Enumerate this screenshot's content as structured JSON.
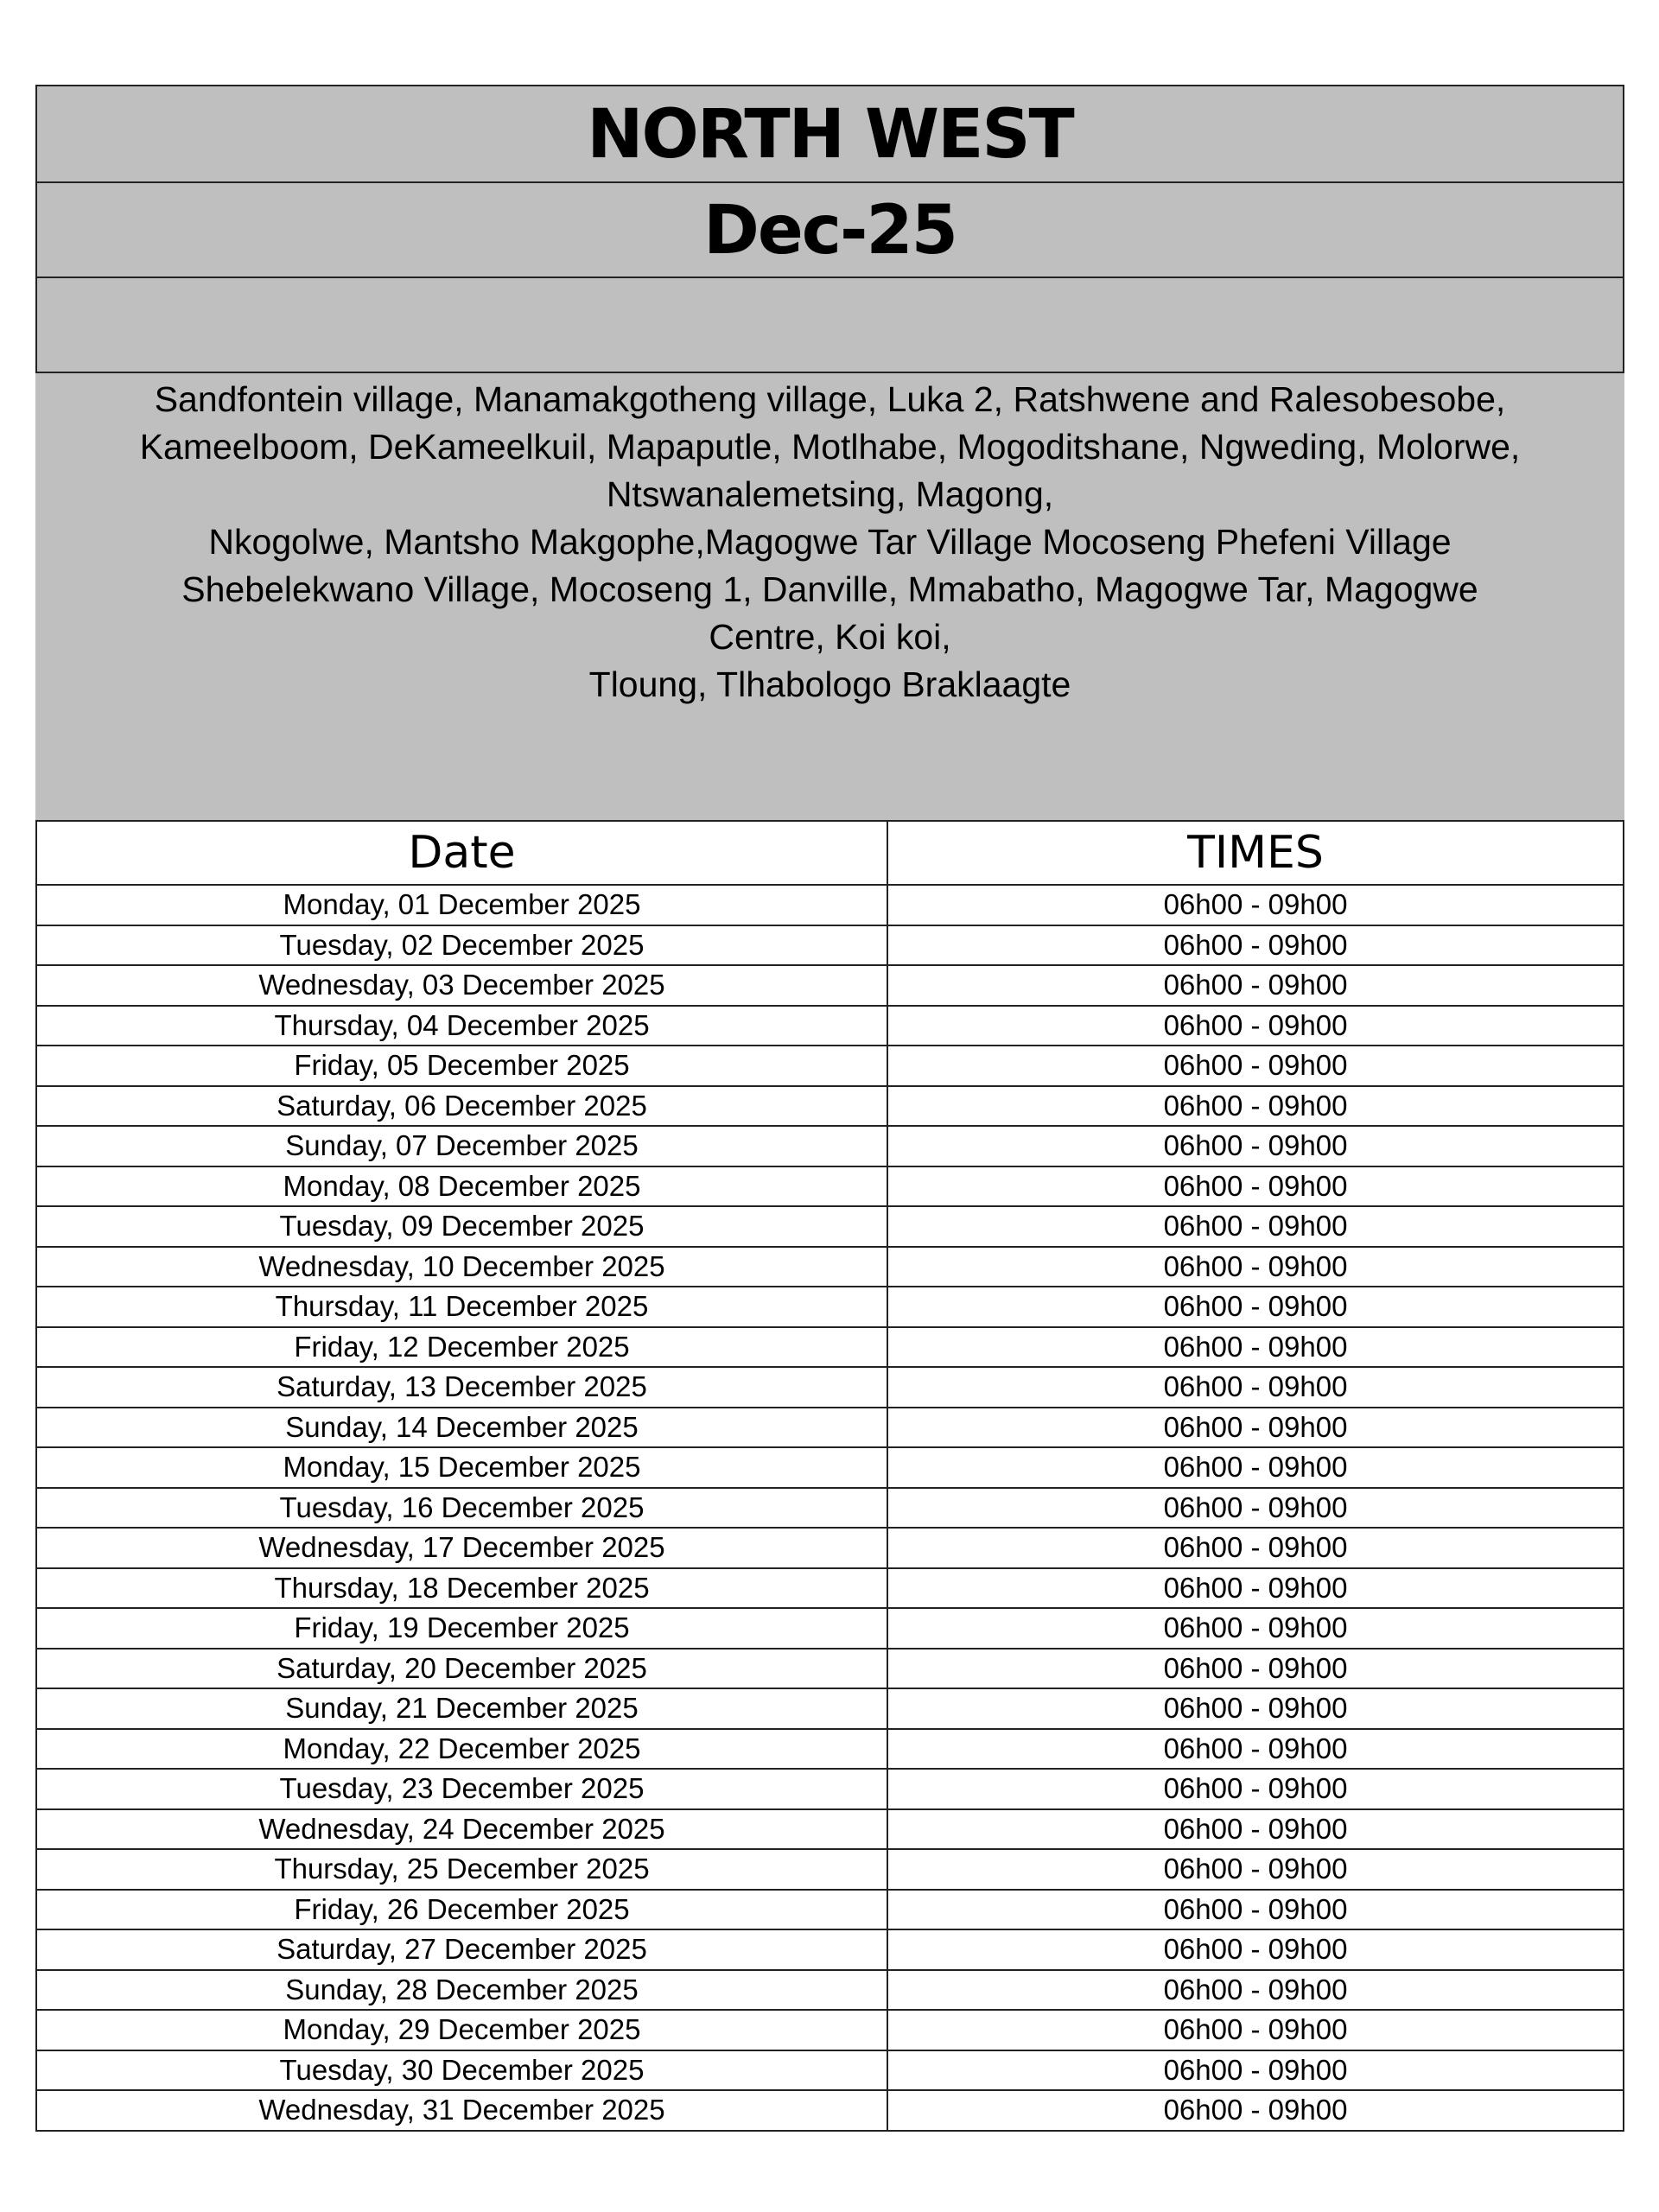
{
  "header": {
    "region": "NORTH WEST",
    "month": "Dec-25"
  },
  "areas": [
    "Sandfontein village, Manamakgotheng village, Luka 2, Ratshwene and Ralesobesobe,",
    "Kameelboom, DeKameelkuil, Mapaputle, Motlhabe, Mogoditshane, Ngweding, Molorwe,",
    "Ntswanalemetsing, Magong,",
    "Nkogolwe, Mantsho Makgophe,Magogwe Tar Village Mocoseng Phefeni Village",
    "Shebelekwano Village, Mocoseng 1, Danville, Mmabatho, Magogwe Tar, Magogwe",
    "Centre, Koi koi,",
    "Tloung, Tlhabologo Braklaagte"
  ],
  "table": {
    "columns": [
      "Date",
      "TIMES"
    ],
    "rows": [
      [
        "Monday, 01 December 2025",
        "06h00 - 09h00"
      ],
      [
        "Tuesday, 02 December 2025",
        "06h00 - 09h00"
      ],
      [
        "Wednesday, 03 December 2025",
        "06h00 - 09h00"
      ],
      [
        "Thursday, 04 December 2025",
        "06h00 - 09h00"
      ],
      [
        "Friday, 05 December 2025",
        "06h00 - 09h00"
      ],
      [
        "Saturday, 06 December 2025",
        "06h00 - 09h00"
      ],
      [
        "Sunday, 07 December 2025",
        "06h00 - 09h00"
      ],
      [
        "Monday, 08 December 2025",
        "06h00 - 09h00"
      ],
      [
        "Tuesday, 09 December 2025",
        "06h00 - 09h00"
      ],
      [
        "Wednesday, 10 December 2025",
        "06h00 - 09h00"
      ],
      [
        "Thursday, 11 December 2025",
        "06h00 - 09h00"
      ],
      [
        "Friday, 12 December 2025",
        "06h00 - 09h00"
      ],
      [
        "Saturday, 13 December 2025",
        "06h00 - 09h00"
      ],
      [
        "Sunday, 14 December 2025",
        "06h00 - 09h00"
      ],
      [
        "Monday, 15 December 2025",
        "06h00 - 09h00"
      ],
      [
        "Tuesday, 16 December 2025",
        "06h00 - 09h00"
      ],
      [
        "Wednesday, 17 December 2025",
        "06h00 - 09h00"
      ],
      [
        "Thursday, 18 December 2025",
        "06h00 - 09h00"
      ],
      [
        "Friday, 19 December 2025",
        "06h00 - 09h00"
      ],
      [
        "Saturday, 20 December 2025",
        "06h00 - 09h00"
      ],
      [
        "Sunday, 21 December 2025",
        "06h00 - 09h00"
      ],
      [
        "Monday, 22 December 2025",
        "06h00 - 09h00"
      ],
      [
        "Tuesday, 23 December 2025",
        "06h00 - 09h00"
      ],
      [
        "Wednesday, 24 December 2025",
        "06h00 - 09h00"
      ],
      [
        "Thursday, 25 December 2025",
        "06h00 - 09h00"
      ],
      [
        "Friday, 26 December 2025",
        "06h00 - 09h00"
      ],
      [
        "Saturday, 27 December 2025",
        "06h00 - 09h00"
      ],
      [
        "Sunday, 28 December 2025",
        "06h00 - 09h00"
      ],
      [
        "Monday, 29 December 2025",
        "06h00 - 09h00"
      ],
      [
        "Tuesday, 30 December 2025",
        "06h00 - 09h00"
      ],
      [
        "Wednesday, 31 December 2025",
        "06h00 - 09h00"
      ]
    ]
  }
}
